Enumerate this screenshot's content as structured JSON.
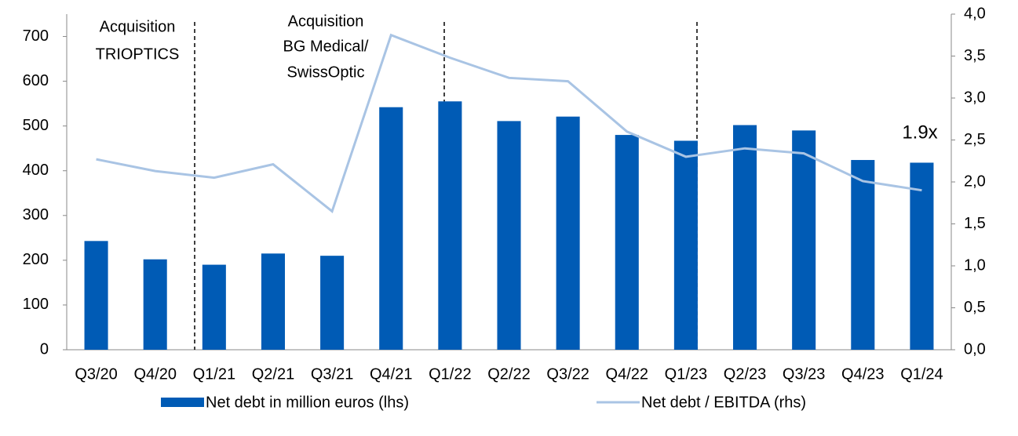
{
  "chart_data": {
    "type": "bar_line",
    "categories": [
      "Q3/20",
      "Q4/20",
      "Q1/21",
      "Q2/21",
      "Q3/21",
      "Q4/21",
      "Q1/22",
      "Q2/22",
      "Q3/22",
      "Q4/22",
      "Q1/23",
      "Q2/23",
      "Q3/23",
      "Q4/23",
      "Q1/24"
    ],
    "series": [
      {
        "name": "Net debt in million euros (lhs)",
        "type": "bar",
        "color": "#005bb5",
        "values": [
          243,
          202,
          190,
          215,
          210,
          542,
          555,
          511,
          521,
          480,
          467,
          502,
          490,
          424,
          418
        ]
      },
      {
        "name": "Net debt / EBITDA (rhs)",
        "type": "line",
        "axis": "y2",
        "color": "#a9c4e4",
        "values": [
          2.27,
          2.13,
          2.05,
          2.21,
          1.65,
          3.75,
          3.48,
          3.24,
          3.2,
          2.6,
          2.3,
          2.4,
          2.34,
          2.01,
          1.9
        ]
      }
    ],
    "ylim": [
      0,
      750
    ],
    "yticks": [
      0,
      100,
      200,
      300,
      400,
      500,
      600,
      700
    ],
    "y2lim": [
      0,
      4
    ],
    "y2ticks": [
      {
        "value": 0,
        "label": "0,0"
      },
      {
        "value": 0.5,
        "label": "0,5"
      },
      {
        "value": 1,
        "label": "1,0"
      },
      {
        "value": 1.5,
        "label": "1,5"
      },
      {
        "value": 2,
        "label": "2,0"
      },
      {
        "value": 2.5,
        "label": "2,5"
      },
      {
        "value": 3,
        "label": "3,0"
      },
      {
        "value": 3.5,
        "label": "3,5"
      },
      {
        "value": 4,
        "label": "4,0"
      }
    ],
    "annotations": [
      {
        "lines": [
          "Acquisition",
          "TRIOPTICS"
        ]
      },
      {
        "lines": [
          "Acquisition",
          "BG Medical/",
          "SwissOptic"
        ]
      },
      {
        "lines": [
          "1.9x"
        ]
      }
    ],
    "legend": "bottom"
  }
}
